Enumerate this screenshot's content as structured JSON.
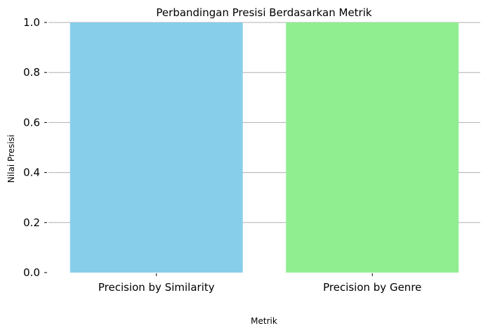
{
  "chart_data": {
    "type": "bar",
    "title": "Perbandingan Presisi Berdasarkan Metrik",
    "xlabel": "Metrik",
    "ylabel": "Nilai Presisi",
    "categories": [
      "Precision by Similarity",
      "Precision by Genre"
    ],
    "values": [
      1.0,
      1.0
    ],
    "colors": [
      "#87ceeb",
      "#90ee90"
    ],
    "ylim": [
      0,
      1.0
    ],
    "yticks": [
      "0.0",
      "0.2",
      "0.4",
      "0.6",
      "0.8",
      "1.0"
    ],
    "grid": "horizontal"
  }
}
